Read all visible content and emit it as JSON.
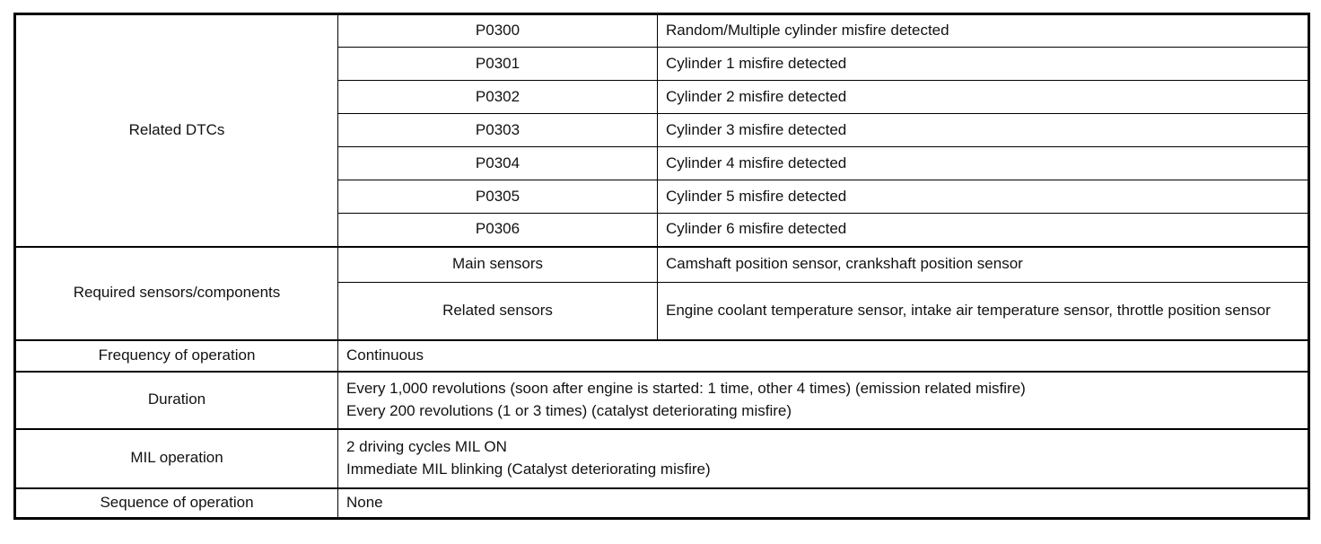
{
  "table": {
    "related_dtcs": {
      "label": "Related DTCs",
      "rows": [
        {
          "code": "P0300",
          "description": "Random/Multiple cylinder misfire detected"
        },
        {
          "code": "P0301",
          "description": "Cylinder 1 misfire detected"
        },
        {
          "code": "P0302",
          "description": "Cylinder 2 misfire detected"
        },
        {
          "code": "P0303",
          "description": "Cylinder 3 misfire detected"
        },
        {
          "code": "P0304",
          "description": "Cylinder 4 misfire detected"
        },
        {
          "code": "P0305",
          "description": "Cylinder 5 misfire detected"
        },
        {
          "code": "P0306",
          "description": "Cylinder 6 misfire detected"
        }
      ]
    },
    "required_sensors": {
      "label": "Required sensors/components",
      "rows": [
        {
          "type": "Main sensors",
          "description": "Camshaft position sensor, crankshaft position sensor"
        },
        {
          "type": "Related sensors",
          "description": "Engine coolant temperature sensor, intake air temperature sensor, throttle position sensor"
        }
      ]
    },
    "frequency": {
      "label": "Frequency of operation",
      "value": "Continuous"
    },
    "duration": {
      "label": "Duration",
      "lines": [
        "Every 1,000 revolutions (soon after engine is started: 1 time, other 4 times) (emission related misfire)",
        "Every 200 revolutions (1 or 3 times) (catalyst deteriorating misfire)"
      ]
    },
    "mil": {
      "label": "MIL operation",
      "lines": [
        "2 driving cycles MIL ON",
        "Immediate MIL blinking (Catalyst deteriorating misfire)"
      ]
    },
    "sequence": {
      "label": "Sequence of operation",
      "value": "None"
    }
  }
}
